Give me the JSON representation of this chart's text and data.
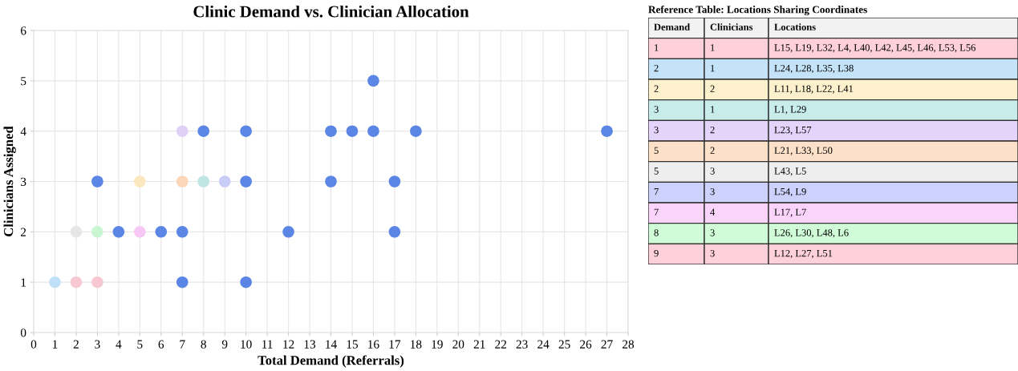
{
  "chart_data": [
    {
      "type": "scatter",
      "title": "Clinic Demand vs. Clinician Allocation",
      "xlabel": "Total Demand (Referrals)",
      "ylabel": "Clinicians Assigned",
      "x": [
        1,
        2,
        3,
        2,
        3,
        5,
        5,
        7,
        8,
        9,
        7,
        3,
        4,
        6,
        7,
        7,
        8,
        10,
        10,
        10,
        12,
        14,
        15,
        16,
        16,
        18,
        14,
        17,
        17,
        27
      ],
      "values": [
        1,
        1,
        1,
        2,
        2,
        2,
        3,
        3,
        3,
        3,
        4,
        3,
        2,
        2,
        2,
        1,
        4,
        4,
        3,
        1,
        2,
        4,
        4,
        4,
        5,
        4,
        3,
        3,
        2,
        4
      ],
      "colors": [
        "#bfe0f7",
        "#f8c8d2",
        "#f8c8d2",
        "#e6e6e6",
        "#c8f5d2",
        "#f7c8f5",
        "#fce8bf",
        "#fcd6b8",
        "#bfe6e3",
        "#c8ccf7",
        "#e0cff7",
        "#5b86e5",
        "#5b86e5",
        "#5b86e5",
        "#5b86e5",
        "#5b86e5",
        "#5b86e5",
        "#5b86e5",
        "#5b86e5",
        "#5b86e5",
        "#5b86e5",
        "#5b86e5",
        "#5b86e5",
        "#5b86e5",
        "#5b86e5",
        "#5b86e5",
        "#5b86e5",
        "#5b86e5",
        "#5b86e5",
        "#5b86e5"
      ],
      "xlim": [
        0,
        28
      ],
      "xticks": [
        0,
        1,
        2,
        3,
        4,
        5,
        6,
        7,
        8,
        9,
        10,
        11,
        12,
        13,
        14,
        15,
        16,
        17,
        18,
        19,
        20,
        21,
        22,
        23,
        24,
        25,
        26,
        27,
        28
      ],
      "ylim": [
        0,
        6
      ],
      "yticks": [
        0,
        1,
        2,
        3,
        4,
        5,
        6
      ],
      "grid": true,
      "marker": "circle"
    },
    {
      "type": "other",
      "title": "Reference Table: Locations Sharing Coordinates",
      "cells": [
        [
          "Demand",
          "Clinicians",
          "Locations"
        ],
        [
          "1",
          "1",
          "L15, L19, L32, L4, L40, L42, L45, L46, L53, L56"
        ],
        [
          "2",
          "1",
          "L24, L28, L35, L38"
        ],
        [
          "2",
          "2",
          "L11, L18, L22, L41"
        ],
        [
          "3",
          "1",
          "L1, L29"
        ],
        [
          "3",
          "2",
          "L23, L57"
        ],
        [
          "5",
          "2",
          "L21, L33, L50"
        ],
        [
          "5",
          "3",
          "L43, L5"
        ],
        [
          "7",
          "3",
          "L54, L9"
        ],
        [
          "7",
          "4",
          "L17, L7"
        ],
        [
          "8",
          "3",
          "L26, L30, L48, L6"
        ],
        [
          "9",
          "3",
          "L12, L27, L51"
        ]
      ],
      "colors": [
        "#f2f2f2",
        "#fdd0da",
        "#c4e2f8",
        "#fdf0cc",
        "#c8ecea",
        "#e4d4fb",
        "#fde0c8",
        "#eeeeee",
        "#ccd2fb",
        "#fbd4fb",
        "#d0fcd8",
        "#fdd0da"
      ]
    }
  ]
}
